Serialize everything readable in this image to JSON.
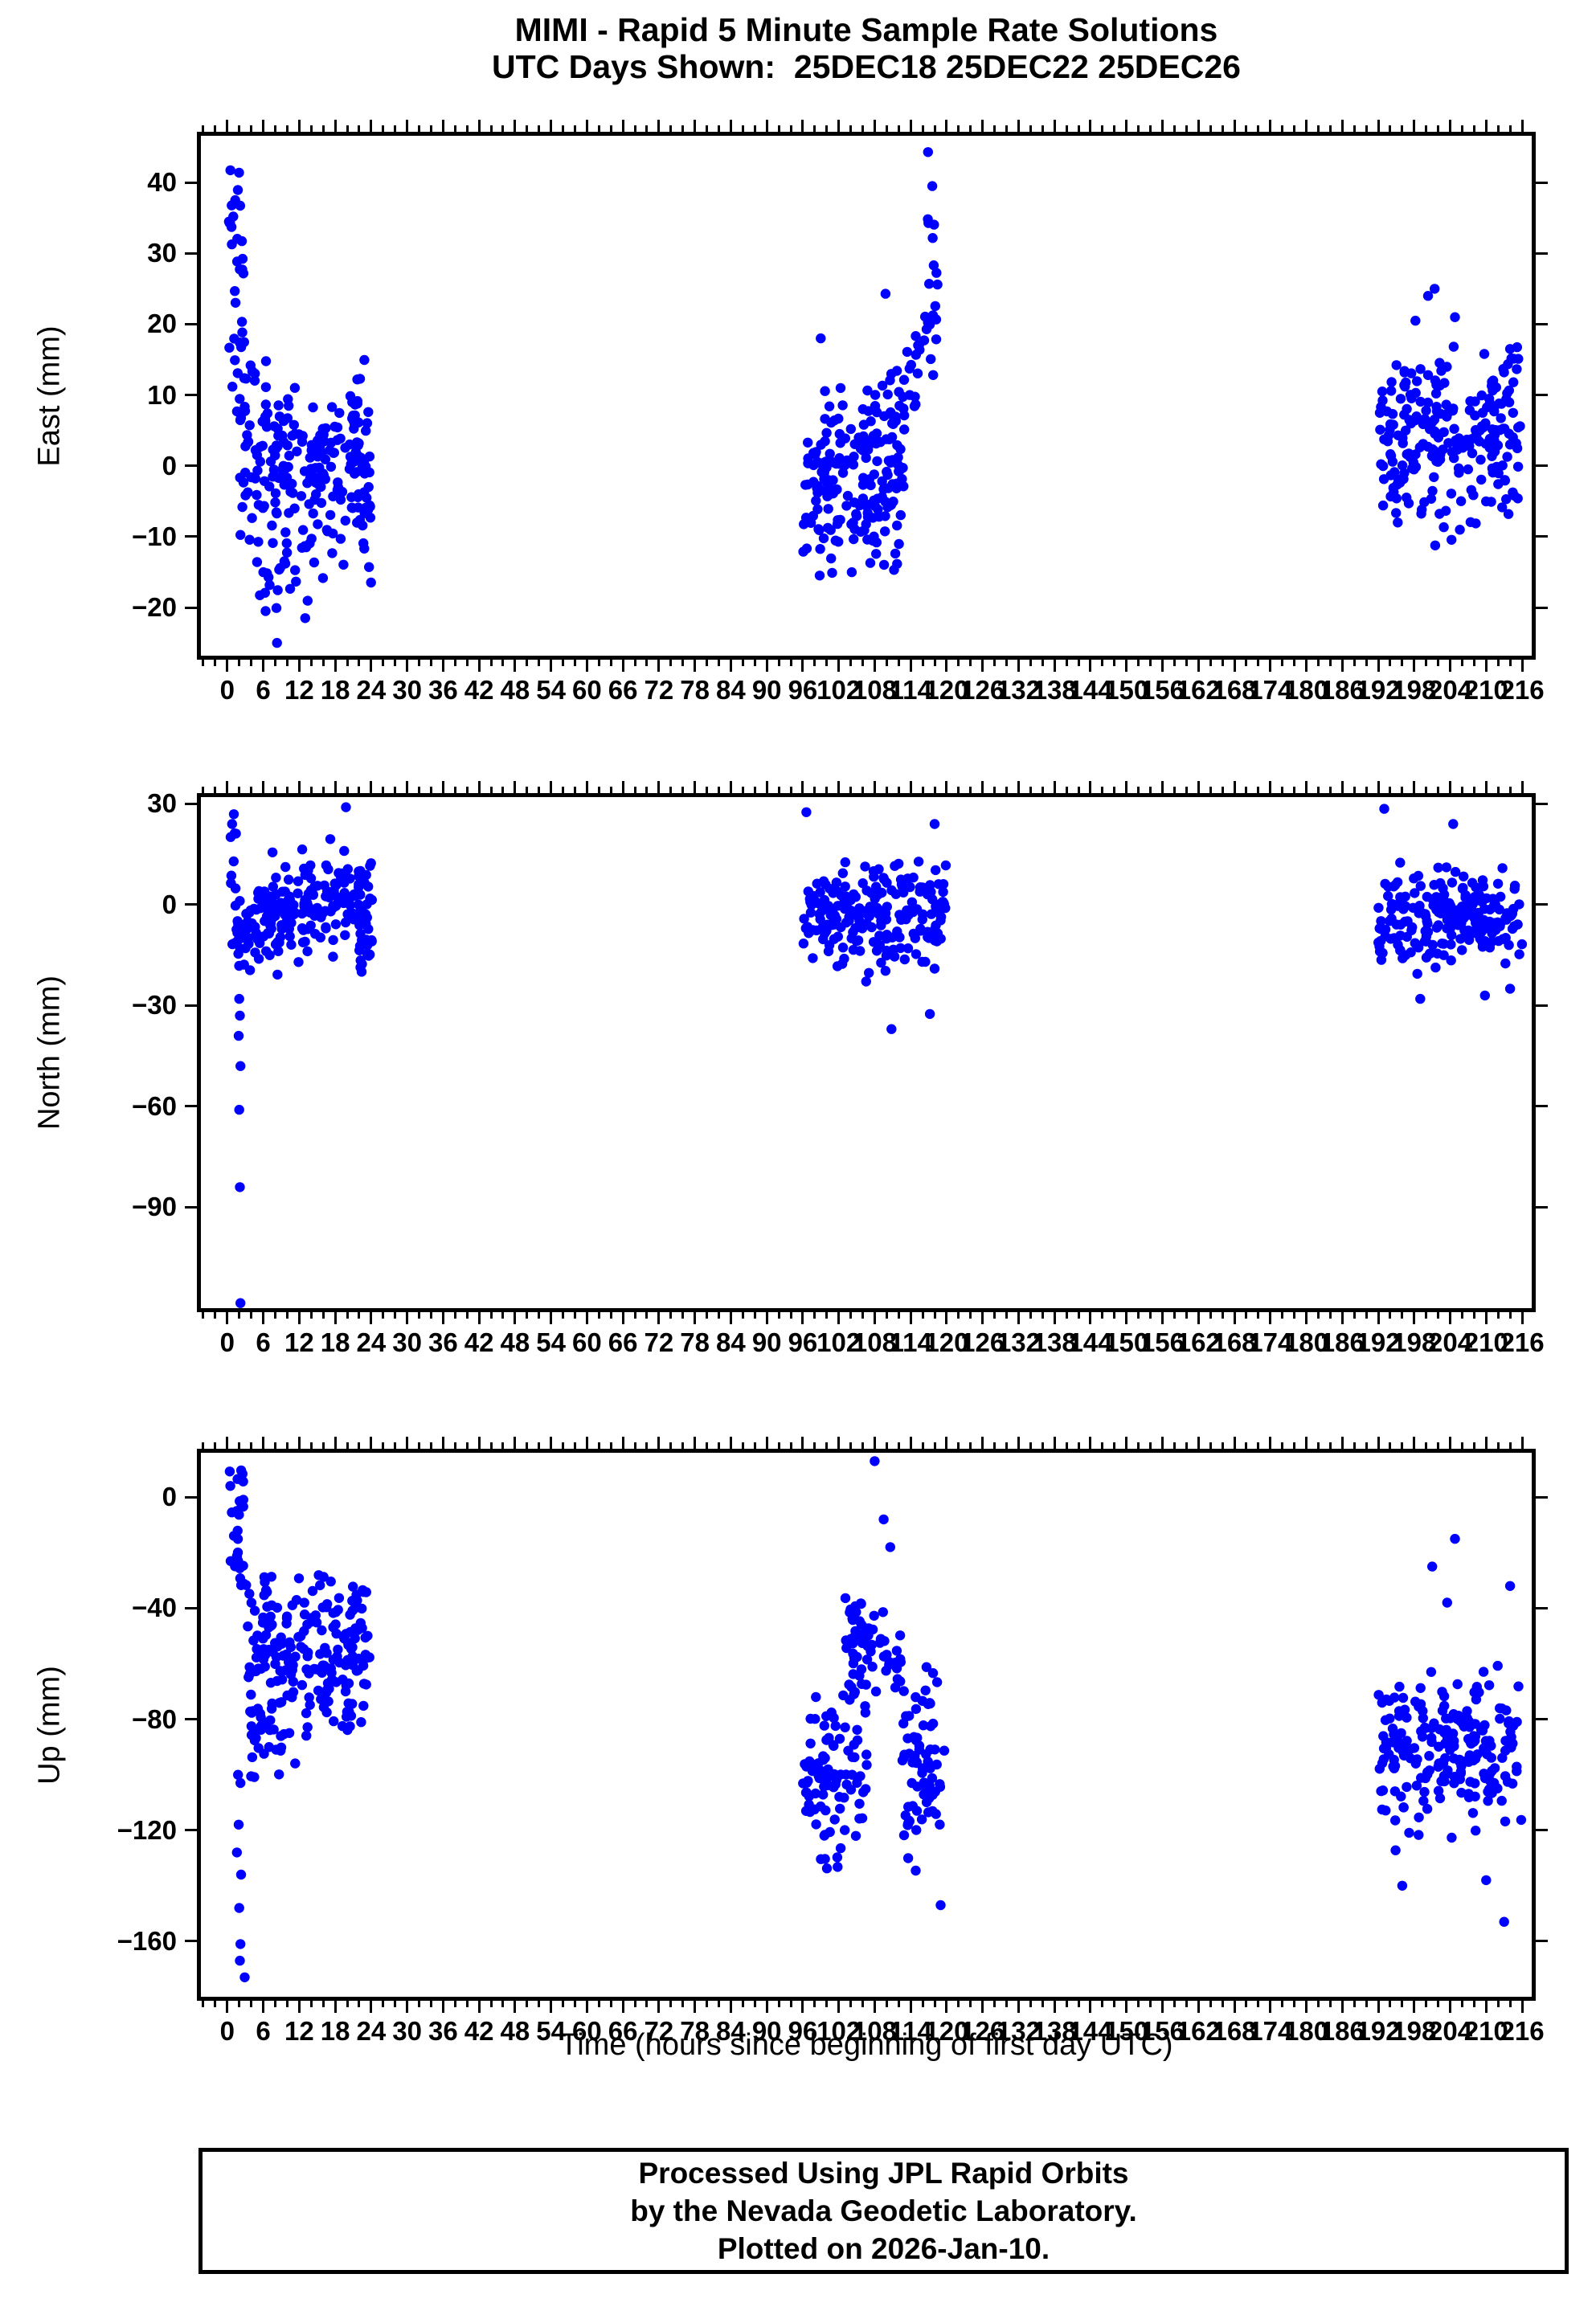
{
  "footer_box": {
    "lines": [
      "Processed Using JPL Rapid Orbits",
      "by the Nevada Geodetic Laboratory.",
      "Plotted on 2026-Jan-10."
    ]
  },
  "chart_data": {
    "type": "scatter",
    "title": "MIMI - Rapid 5 Minute Sample Rate Solutions",
    "subtitle": "UTC Days Shown:  25DEC18 25DEC22 25DEC26",
    "days_shown": [
      "25DEC18",
      "25DEC22",
      "25DEC26"
    ],
    "xlabel": "Time (hours since beginning of first day UTC)",
    "x_range": [
      -4.4,
      217.6
    ],
    "x_major_ticks": [
      0,
      6,
      12,
      18,
      24,
      30,
      36,
      42,
      48,
      54,
      60,
      66,
      72,
      78,
      84,
      90,
      96,
      102,
      108,
      114,
      120,
      126,
      132,
      138,
      144,
      150,
      156,
      162,
      168,
      174,
      180,
      186,
      192,
      198,
      204,
      210,
      216
    ],
    "x_minor_tick_interval": 2,
    "grid": false,
    "legend": null,
    "marker": {
      "shape": "circle",
      "color": "#0000ff",
      "radius_px": 6.2
    },
    "panels": [
      {
        "id": "east",
        "ylabel": "East (mm)",
        "y_range": [
          -26.8,
          46.6
        ],
        "y_ticks": [
          40,
          30,
          20,
          10,
          0,
          -10,
          -20
        ],
        "clusters": [
          {
            "x": [
              0.2,
              2.9
            ],
            "dist": "uniform",
            "y": [
              17,
              42.5
            ],
            "n": 26
          },
          {
            "x": [
              0.3,
              3.2
            ],
            "dist": "uniform",
            "y": [
              4,
              17
            ],
            "n": 9
          },
          {
            "x": [
              2,
              24
            ],
            "dist": "normal",
            "mean": [
              2,
              -3
            ],
            "sd": 6.5,
            "clip": [
              -17,
              15
            ],
            "n": 210
          },
          {
            "x": [
              5,
              15
            ],
            "dist": "normal",
            "mean": [
              -15,
              -15
            ],
            "sd": 4,
            "clip": [
              -23,
              -8
            ],
            "n": 22
          },
          {
            "x": [
              20.5,
              24.2
            ],
            "dist": "normal",
            "mean": [
              6,
              6
            ],
            "sd": 5,
            "clip": [
              -6,
              16
            ],
            "n": 24
          },
          {
            "x": [
              96,
              113
            ],
            "dist": "normal",
            "mean": [
              -3,
              -3
            ],
            "sd": 6,
            "clip": [
              -16,
              12
            ],
            "n": 180
          },
          {
            "x": [
              106,
              119
            ],
            "dist": "normal",
            "mean": [
              2,
              19
            ],
            "sd": 4.5,
            "clip": [
              -6,
              27
            ],
            "n": 50
          },
          {
            "x": [
              116.3,
              118.7
            ],
            "dist": "uniform",
            "y": [
              19,
              36
            ],
            "n": 10
          },
          {
            "x": [
              192,
              216
            ],
            "dist": "normal",
            "mean": [
              4,
              4
            ],
            "sd": 6.5,
            "clip": [
              -13.5,
              17
            ],
            "n": 240
          }
        ],
        "points": [
          [
            8.3,
            -25
          ],
          [
            13,
            -21.5
          ],
          [
            116.9,
            44.3
          ],
          [
            117.6,
            39.5
          ],
          [
            109.8,
            24.3
          ],
          [
            200.3,
            24
          ],
          [
            201.4,
            25
          ],
          [
            204.8,
            21
          ],
          [
            198.2,
            20.5
          ],
          [
            99,
            18
          ],
          [
            214,
            16.5
          ]
        ]
      },
      {
        "id": "north",
        "ylabel": "North (mm)",
        "y_range": [
          -120,
          32
        ],
        "y_ticks": [
          30,
          0,
          -30,
          -60,
          -90
        ],
        "clusters": [
          {
            "x": [
              0.3,
              2.3
            ],
            "dist": "uniform",
            "y": [
              -20,
              22
            ],
            "n": 16
          },
          {
            "x": [
              1.5,
              24
            ],
            "dist": "normal",
            "mean": [
              -7,
              5
            ],
            "sd": 7,
            "clip": [
              -24,
              20
            ],
            "n": 215
          },
          {
            "x": [
              22,
              24.3
            ],
            "dist": "normal",
            "mean": [
              -13,
              -13
            ],
            "sd": 7,
            "clip": [
              -26,
              2
            ],
            "n": 18
          },
          {
            "x": [
              96,
              120
            ],
            "dist": "normal",
            "mean": [
              -3,
              -3
            ],
            "sd": 7.5,
            "clip": [
              -24,
              18
            ],
            "n": 210
          },
          {
            "x": [
              192,
              216
            ],
            "dist": "normal",
            "mean": [
              -4,
              -4
            ],
            "sd": 7,
            "clip": [
              -24,
              14
            ],
            "n": 215
          }
        ],
        "points": [
          [
            1.1,
            26.9
          ],
          [
            0.8,
            24
          ],
          [
            19.8,
            29
          ],
          [
            2.0,
            -28
          ],
          [
            2.1,
            -33
          ],
          [
            1.9,
            -39
          ],
          [
            2.2,
            -48
          ],
          [
            2.0,
            -61
          ],
          [
            2.1,
            -84
          ],
          [
            2.2,
            -118.5
          ],
          [
            96.6,
            27.5
          ],
          [
            118,
            24
          ],
          [
            110.8,
            -37
          ],
          [
            117.2,
            -32.5
          ],
          [
            193,
            28.5
          ],
          [
            204.5,
            24
          ],
          [
            199,
            -28
          ],
          [
            209.8,
            -27
          ],
          [
            214,
            -25
          ]
        ]
      },
      {
        "id": "up",
        "ylabel": "Up (mm)",
        "y_range": [
          -180,
          16
        ],
        "y_ticks": [
          0,
          -40,
          -80,
          -120,
          -160
        ],
        "clusters": [
          {
            "x": [
              0.4,
              2.7
            ],
            "dist": "uniform",
            "y": [
              -35,
              10
            ],
            "n": 24
          },
          {
            "x": [
              0.3,
              8
            ],
            "dist": "normal",
            "mean": [
              -32,
              -32
            ],
            "sd": 3,
            "clip": [
              -39,
              -25
            ],
            "n": 9
          },
          {
            "x": [
              3,
              24
            ],
            "dist": "normal",
            "mean": [
              -52,
              -60
            ],
            "sd": 15,
            "clip": [
              -97,
              -28
            ],
            "n": 200
          },
          {
            "x": [
              3.5,
              9.5
            ],
            "dist": "normal",
            "mean": [
              -85,
              -85
            ],
            "sd": 10,
            "clip": [
              -107,
              -60
            ],
            "n": 28
          },
          {
            "x": [
              96,
              107
            ],
            "dist": "normal",
            "mean": [
              -100,
              -100
            ],
            "sd": 15,
            "clip": [
              -140,
              -62
            ],
            "n": 95
          },
          {
            "x": [
              103,
              112.5
            ],
            "dist": "normal",
            "mean": [
              -55,
              -55
            ],
            "sd": 9,
            "clip": [
              -78,
              -36
            ],
            "n": 65
          },
          {
            "x": [
              112,
              120
            ],
            "dist": "normal",
            "mean": [
              -98,
              -98
            ],
            "sd": 17,
            "clip": [
              -145,
              -55
            ],
            "n": 72
          },
          {
            "x": [
              192,
              216
            ],
            "dist": "normal",
            "mean": [
              -92,
              -92
            ],
            "sd": 16,
            "clip": [
              -128,
              -52
            ],
            "n": 210
          }
        ],
        "points": [
          [
            1.8,
            -100
          ],
          [
            2.2,
            -103
          ],
          [
            1.9,
            -118
          ],
          [
            1.6,
            -128
          ],
          [
            2.3,
            -136
          ],
          [
            2.0,
            -148
          ],
          [
            2.2,
            -161
          ],
          [
            2.1,
            -167
          ],
          [
            2.9,
            -173
          ],
          [
            108,
            13
          ],
          [
            109.5,
            -8
          ],
          [
            110.6,
            -18
          ],
          [
            201,
            -25
          ],
          [
            204.8,
            -15
          ],
          [
            214,
            -32
          ],
          [
            203.5,
            -38
          ],
          [
            196,
            -140
          ],
          [
            213,
            -153
          ],
          [
            210,
            -138
          ],
          [
            119,
            -147
          ]
        ]
      }
    ]
  }
}
